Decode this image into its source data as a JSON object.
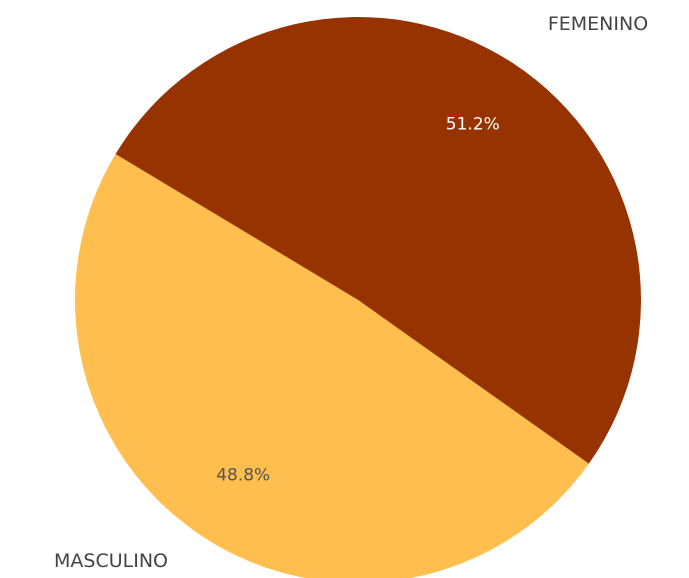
{
  "chart_data": {
    "type": "pie",
    "categories": [
      "FEMENINO",
      "MASCULINO"
    ],
    "values": [
      51.2,
      48.8
    ],
    "value_labels": [
      "51.2%",
      "48.8%"
    ],
    "colors": [
      "#973300",
      "#FFBE4D"
    ],
    "value_label_colors": [
      "#ffffff",
      "#555555"
    ]
  }
}
